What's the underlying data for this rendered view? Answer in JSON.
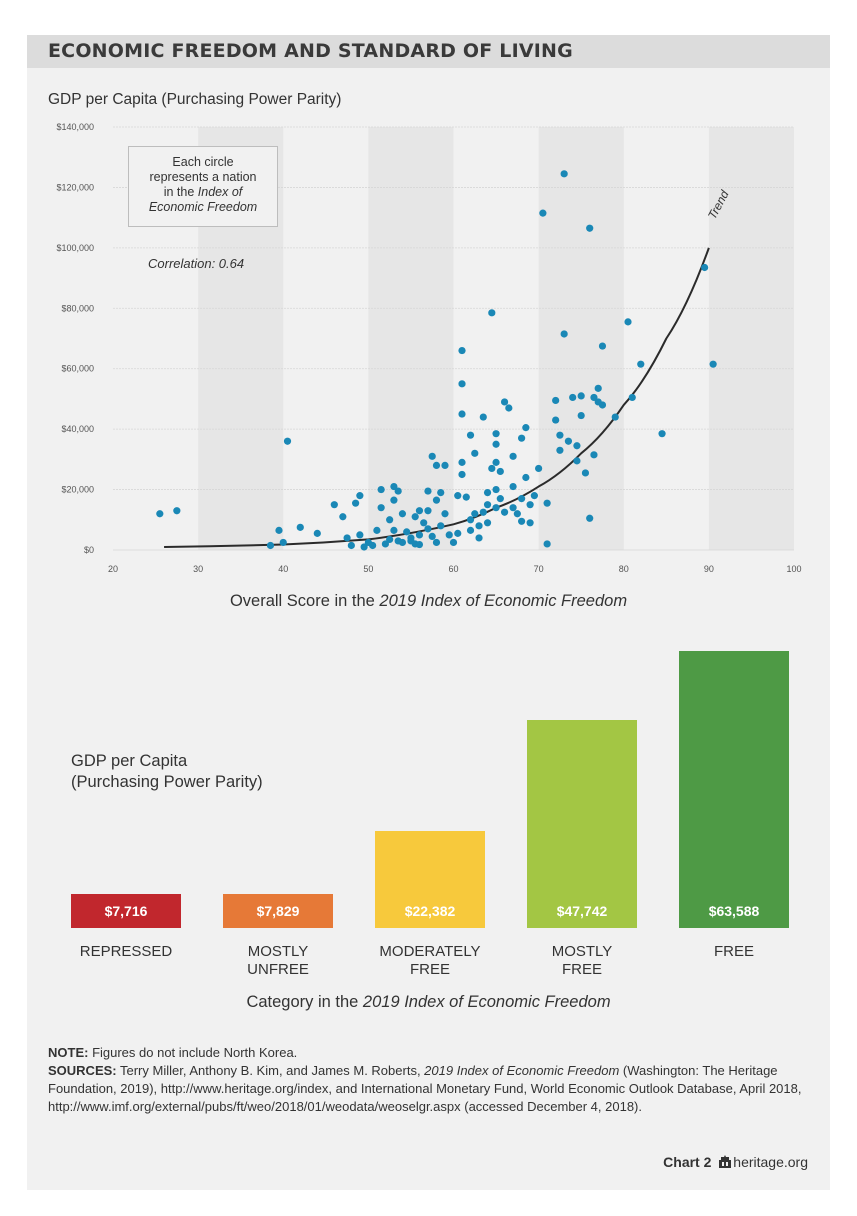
{
  "title": "ECONOMIC FREEDOM AND STANDARD OF LIVING",
  "colors": {
    "point": "#1a88b6",
    "trend": "#2b2b2b",
    "band": "#e6e6e6",
    "repressed": "#c1272d",
    "mostly_unfree": "#e67937",
    "moderately_free": "#f7c93c",
    "mostly_free": "#a3c644",
    "free": "#4e9a45"
  },
  "scatter": {
    "ylabel": "GDP per Capita (Purchasing Power Parity)",
    "note_line1": "Each circle",
    "note_line2": "represents a nation",
    "note_line3": "in the",
    "note_italic1": "Index of",
    "note_italic2": "Economic Freedom",
    "correlation": "Correlation: 0.64",
    "trend_label": "Trend",
    "xtitle_prefix": "Overall Score in the ",
    "xtitle_italic": "2019 Index of Economic Freedom"
  },
  "bars": {
    "ylabel_line1": "GDP per Capita",
    "ylabel_line2": "(Purchasing Power Parity)",
    "xtitle_prefix": "Category in the ",
    "xtitle_italic": "2019 Index of Economic Freedom"
  },
  "notes": {
    "note_label": "NOTE:",
    "note_text": " Figures do not include North Korea.",
    "sources_label": "SOURCES:",
    "sources_text1": " Terry Miller, Anthony B. Kim, and James M. Roberts, ",
    "sources_italic": "2019 Index of Economic Freedom",
    "sources_text2": " (Washington: The Heritage Foundation, 2019), http://www.heritage.org/index, and International Monetary Fund, World Economic Outlook Database, April 2018, http://www.imf.org/external/pubs/ft/weo/2018/01/weodata/weoselgr.aspx (accessed December 4, 2018)."
  },
  "credit": {
    "chart_number": "Chart 2",
    "site": "heritage.org",
    "icon": "bell-icon"
  },
  "chart_data": [
    {
      "type": "scatter",
      "title": "ECONOMIC FREEDOM AND STANDARD OF LIVING",
      "xlabel": "Overall Score in the 2019 Index of Economic Freedom",
      "ylabel": "GDP per Capita (Purchasing Power Parity)",
      "xlim": [
        20,
        100
      ],
      "ylim": [
        0,
        140000
      ],
      "x_ticks": [
        "20",
        "30",
        "40",
        "50",
        "60",
        "70",
        "80",
        "90",
        "100"
      ],
      "y_ticks": [
        "$0",
        "$20,000",
        "$40,000",
        "$60,000",
        "$80,000",
        "$100,000",
        "$120,000",
        "$140,000"
      ],
      "grid": "horizontal",
      "annotations": [
        "Correlation: 0.64",
        "Trend"
      ],
      "trend": [
        [
          26,
          1000
        ],
        [
          40,
          1800
        ],
        [
          50,
          3500
        ],
        [
          60,
          8500
        ],
        [
          65,
          14000
        ],
        [
          70,
          21000
        ],
        [
          75,
          32000
        ],
        [
          80,
          48000
        ],
        [
          85,
          70000
        ],
        [
          90,
          100000
        ]
      ],
      "points": [
        [
          25.5,
          12000
        ],
        [
          27.5,
          13000
        ],
        [
          38.5,
          1500
        ],
        [
          39.5,
          6500
        ],
        [
          40,
          2500
        ],
        [
          40.5,
          36000
        ],
        [
          42,
          7500
        ],
        [
          44,
          5500
        ],
        [
          46,
          15000
        ],
        [
          47,
          11000
        ],
        [
          47.5,
          4000
        ],
        [
          48,
          1500
        ],
        [
          48.5,
          15500
        ],
        [
          49,
          18000
        ],
        [
          49,
          5000
        ],
        [
          49.5,
          1000
        ],
        [
          50,
          2500
        ],
        [
          50.5,
          1500
        ],
        [
          51,
          6500
        ],
        [
          51.5,
          20000
        ],
        [
          51.5,
          14000
        ],
        [
          52,
          2000
        ],
        [
          52.5,
          3500
        ],
        [
          52.5,
          10000
        ],
        [
          53,
          21000
        ],
        [
          53,
          16500
        ],
        [
          53,
          6500
        ],
        [
          53.5,
          19500
        ],
        [
          53.5,
          3000
        ],
        [
          54,
          12000
        ],
        [
          54,
          2500
        ],
        [
          54.5,
          6000
        ],
        [
          55,
          4000
        ],
        [
          55,
          3000
        ],
        [
          55.5,
          11000
        ],
        [
          55.5,
          2000
        ],
        [
          56,
          13000
        ],
        [
          56,
          5000
        ],
        [
          56,
          1800
        ],
        [
          56.5,
          9000
        ],
        [
          57,
          13000
        ],
        [
          57,
          19500
        ],
        [
          57,
          7000
        ],
        [
          57.5,
          31000
        ],
        [
          57.5,
          4500
        ],
        [
          58,
          28000
        ],
        [
          58,
          16500
        ],
        [
          58,
          2500
        ],
        [
          58.5,
          8000
        ],
        [
          58.5,
          19000
        ],
        [
          59,
          28000
        ],
        [
          59,
          12000
        ],
        [
          59.5,
          5000
        ],
        [
          60,
          2500
        ],
        [
          60.5,
          18000
        ],
        [
          60.5,
          5500
        ],
        [
          61,
          66000
        ],
        [
          61,
          55000
        ],
        [
          61,
          45000
        ],
        [
          61,
          29000
        ],
        [
          61,
          25000
        ],
        [
          61.5,
          17500
        ],
        [
          62,
          38000
        ],
        [
          62,
          10000
        ],
        [
          62,
          6500
        ],
        [
          62.5,
          32000
        ],
        [
          62.5,
          12000
        ],
        [
          63,
          8000
        ],
        [
          63,
          4000
        ],
        [
          63.5,
          44000
        ],
        [
          63.5,
          12500
        ],
        [
          64,
          15000
        ],
        [
          64,
          19000
        ],
        [
          64,
          9000
        ],
        [
          64.5,
          27000
        ],
        [
          64.5,
          78500
        ],
        [
          65,
          35000
        ],
        [
          65,
          29000
        ],
        [
          65,
          38500
        ],
        [
          65,
          20000
        ],
        [
          65,
          14000
        ],
        [
          65.5,
          26000
        ],
        [
          65.5,
          17000
        ],
        [
          66,
          49000
        ],
        [
          66,
          12500
        ],
        [
          66.5,
          47000
        ],
        [
          67,
          31000
        ],
        [
          67,
          21000
        ],
        [
          67,
          14000
        ],
        [
          67.5,
          12000
        ],
        [
          68,
          37000
        ],
        [
          68,
          9500
        ],
        [
          68,
          17000
        ],
        [
          68.5,
          24000
        ],
        [
          68.5,
          40500
        ],
        [
          69,
          15000
        ],
        [
          69,
          9000
        ],
        [
          69.5,
          18000
        ],
        [
          70,
          27000
        ],
        [
          70.5,
          111500
        ],
        [
          71,
          2000
        ],
        [
          71,
          15500
        ],
        [
          72,
          49500
        ],
        [
          72,
          43000
        ],
        [
          72.5,
          38000
        ],
        [
          72.5,
          33000
        ],
        [
          73,
          124500
        ],
        [
          73,
          71500
        ],
        [
          73.5,
          36000
        ],
        [
          74,
          50500
        ],
        [
          74.5,
          29500
        ],
        [
          74.5,
          34500
        ],
        [
          75,
          51000
        ],
        [
          75,
          44500
        ],
        [
          75.5,
          25500
        ],
        [
          76,
          106500
        ],
        [
          76,
          10500
        ],
        [
          76.5,
          31500
        ],
        [
          76.5,
          50500
        ],
        [
          77,
          53500
        ],
        [
          77,
          49000
        ],
        [
          77.5,
          67500
        ],
        [
          77.5,
          48000
        ],
        [
          79,
          44000
        ],
        [
          80.5,
          75500
        ],
        [
          81,
          50500
        ],
        [
          82,
          61500
        ],
        [
          84.5,
          38500
        ],
        [
          89.5,
          93500
        ],
        [
          90.5,
          61500
        ]
      ]
    },
    {
      "type": "bar",
      "xlabel": "Category in the 2019 Index of Economic Freedom",
      "ylabel": "GDP per Capita (Purchasing Power Parity)",
      "ymax": 63588,
      "categories": [
        {
          "label_line1": "REPRESSED",
          "label_line2": "",
          "value": 7716,
          "value_label": "$7,716",
          "color_key": "repressed"
        },
        {
          "label_line1": "MOSTLY",
          "label_line2": "UNFREE",
          "value": 7829,
          "value_label": "$7,829",
          "color_key": "mostly_unfree"
        },
        {
          "label_line1": "MODERATELY",
          "label_line2": "FREE",
          "value": 22382,
          "value_label": "$22,382",
          "color_key": "moderately_free"
        },
        {
          "label_line1": "MOSTLY",
          "label_line2": "FREE",
          "value": 47742,
          "value_label": "$47,742",
          "color_key": "mostly_free"
        },
        {
          "label_line1": "FREE",
          "label_line2": "",
          "value": 63588,
          "value_label": "$63,588",
          "color_key": "free"
        }
      ]
    }
  ]
}
